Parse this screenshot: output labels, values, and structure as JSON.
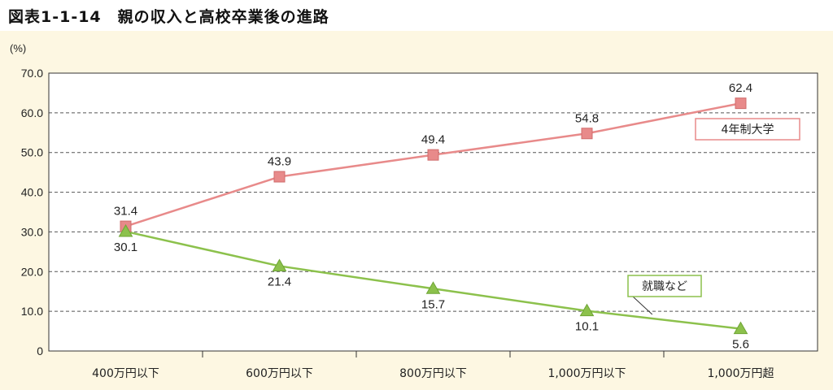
{
  "figure_title": "図表1-1-14　親の収入と高校卒業後の進路",
  "chart_data": {
    "type": "line",
    "title": "図表1-1-14　親の収入と高校卒業後の進路",
    "ylabel": "(%)",
    "xlabel": "",
    "ylim": [
      0,
      70
    ],
    "yticks": [
      "0",
      "10.0",
      "20.0",
      "30.0",
      "40.0",
      "50.0",
      "60.0",
      "70.0"
    ],
    "grid": true,
    "categories": [
      "400万円以下",
      "600万円以下",
      "800万円以下",
      "1,000万円以下",
      "1,000万円超"
    ],
    "series": [
      {
        "name": "4年制大学",
        "values": [
          31.4,
          43.9,
          49.4,
          54.8,
          62.4
        ],
        "labels": [
          "31.4",
          "43.9",
          "49.4",
          "54.8",
          "62.4"
        ],
        "color": "#e88a8a",
        "marker": "square"
      },
      {
        "name": "就職など",
        "values": [
          30.1,
          21.4,
          15.7,
          10.1,
          5.6
        ],
        "labels": [
          "30.1",
          "21.4",
          "15.7",
          "10.1",
          "5.6"
        ],
        "color": "#8cc14c",
        "marker": "triangle"
      }
    ]
  }
}
